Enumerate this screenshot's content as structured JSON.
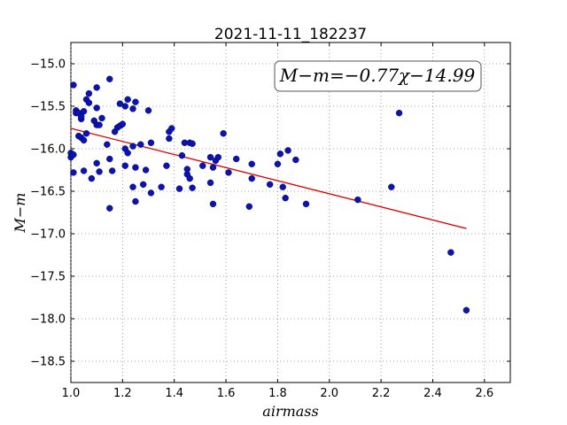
{
  "chart_data": {
    "type": "scatter",
    "title": "2021-11-11_182237",
    "xlabel": "airmass",
    "ylabel": "M−m",
    "annotation": "M−m=−0.77χ−14.99",
    "xlim": [
      1.0,
      2.7
    ],
    "ylim": [
      -18.75,
      -14.75
    ],
    "xticks": [
      1.0,
      1.2,
      1.4,
      1.6,
      1.8,
      2.0,
      2.2,
      2.4,
      2.6
    ],
    "yticks": [
      -15.0,
      -15.5,
      -16.0,
      -16.5,
      -17.0,
      -17.5,
      -18.0,
      -18.5
    ],
    "xtick_labels": [
      "1.0",
      "1.2",
      "1.4",
      "1.6",
      "1.8",
      "2.0",
      "2.2",
      "2.4",
      "2.6"
    ],
    "ytick_labels": [
      "−15.0",
      "−15.5",
      "−16.0",
      "−16.5",
      "−17.0",
      "−17.5",
      "−18.0",
      "−18.5"
    ],
    "grid": true,
    "fit": {
      "slope": -0.77,
      "intercept": -14.99,
      "x_range": [
        1.0,
        2.53
      ],
      "color": "#dd0000"
    },
    "marker_color": "#0a14b4",
    "points": [
      [
        1.0,
        -16.05
      ],
      [
        1.0,
        -16.1
      ],
      [
        1.01,
        -16.07
      ],
      [
        1.01,
        -16.28
      ],
      [
        1.01,
        -15.25
      ],
      [
        1.02,
        -15.55
      ],
      [
        1.02,
        -15.58
      ],
      [
        1.03,
        -15.58
      ],
      [
        1.03,
        -15.85
      ],
      [
        1.04,
        -15.65
      ],
      [
        1.04,
        -15.62
      ],
      [
        1.05,
        -15.56
      ],
      [
        1.04,
        -15.87
      ],
      [
        1.05,
        -15.9
      ],
      [
        1.05,
        -16.26
      ],
      [
        1.06,
        -15.82
      ],
      [
        1.06,
        -15.42
      ],
      [
        1.07,
        -15.46
      ],
      [
        1.07,
        -15.35
      ],
      [
        1.08,
        -16.35
      ],
      [
        1.09,
        -15.67
      ],
      [
        1.1,
        -15.28
      ],
      [
        1.1,
        -15.72
      ],
      [
        1.1,
        -15.52
      ],
      [
        1.11,
        -15.72
      ],
      [
        1.12,
        -15.64
      ],
      [
        1.1,
        -16.17
      ],
      [
        1.11,
        -16.27
      ],
      [
        1.14,
        -15.95
      ],
      [
        1.15,
        -16.12
      ],
      [
        1.15,
        -15.18
      ],
      [
        1.16,
        -16.26
      ],
      [
        1.17,
        -15.8
      ],
      [
        1.18,
        -15.75
      ],
      [
        1.19,
        -15.73
      ],
      [
        1.19,
        -15.47
      ],
      [
        1.2,
        -15.71
      ],
      [
        1.21,
        -15.5
      ],
      [
        1.21,
        -16.2
      ],
      [
        1.21,
        -16.0
      ],
      [
        1.22,
        -15.42
      ],
      [
        1.22,
        -16.05
      ],
      [
        1.24,
        -15.97
      ],
      [
        1.24,
        -15.53
      ],
      [
        1.25,
        -15.45
      ],
      [
        1.25,
        -16.22
      ],
      [
        1.24,
        -16.45
      ],
      [
        1.25,
        -16.62
      ],
      [
        1.27,
        -15.95
      ],
      [
        1.28,
        -16.42
      ],
      [
        1.29,
        -16.25
      ],
      [
        1.3,
        -15.55
      ],
      [
        1.31,
        -15.93
      ],
      [
        1.31,
        -16.52
      ],
      [
        1.35,
        -16.45
      ],
      [
        1.37,
        -16.2
      ],
      [
        1.38,
        -15.88
      ],
      [
        1.38,
        -15.8
      ],
      [
        1.39,
        -15.76
      ],
      [
        1.42,
        -16.47
      ],
      [
        1.43,
        -16.08
      ],
      [
        1.44,
        -15.93
      ],
      [
        1.45,
        -16.3
      ],
      [
        1.45,
        -16.24
      ],
      [
        1.46,
        -16.35
      ],
      [
        1.46,
        -15.93
      ],
      [
        1.47,
        -15.94
      ],
      [
        1.47,
        -16.46
      ],
      [
        1.51,
        -16.2
      ],
      [
        1.54,
        -16.1
      ],
      [
        1.54,
        -16.4
      ],
      [
        1.55,
        -16.22
      ],
      [
        1.55,
        -16.65
      ],
      [
        1.56,
        -16.14
      ],
      [
        1.57,
        -16.1
      ],
      [
        1.59,
        -15.82
      ],
      [
        1.61,
        -16.28
      ],
      [
        1.64,
        -16.12
      ],
      [
        1.69,
        -16.68
      ],
      [
        1.7,
        -16.18
      ],
      [
        1.7,
        -16.35
      ],
      [
        1.77,
        -16.42
      ],
      [
        1.8,
        -16.18
      ],
      [
        1.81,
        -16.06
      ],
      [
        1.82,
        -16.45
      ],
      [
        1.83,
        -16.58
      ],
      [
        1.84,
        -16.02
      ],
      [
        1.87,
        -16.13
      ],
      [
        1.91,
        -16.65
      ],
      [
        2.11,
        -16.6
      ],
      [
        1.15,
        -16.7
      ],
      [
        2.24,
        -16.45
      ],
      [
        2.27,
        -15.58
      ],
      [
        2.47,
        -17.22
      ],
      [
        2.53,
        -17.9
      ]
    ]
  }
}
